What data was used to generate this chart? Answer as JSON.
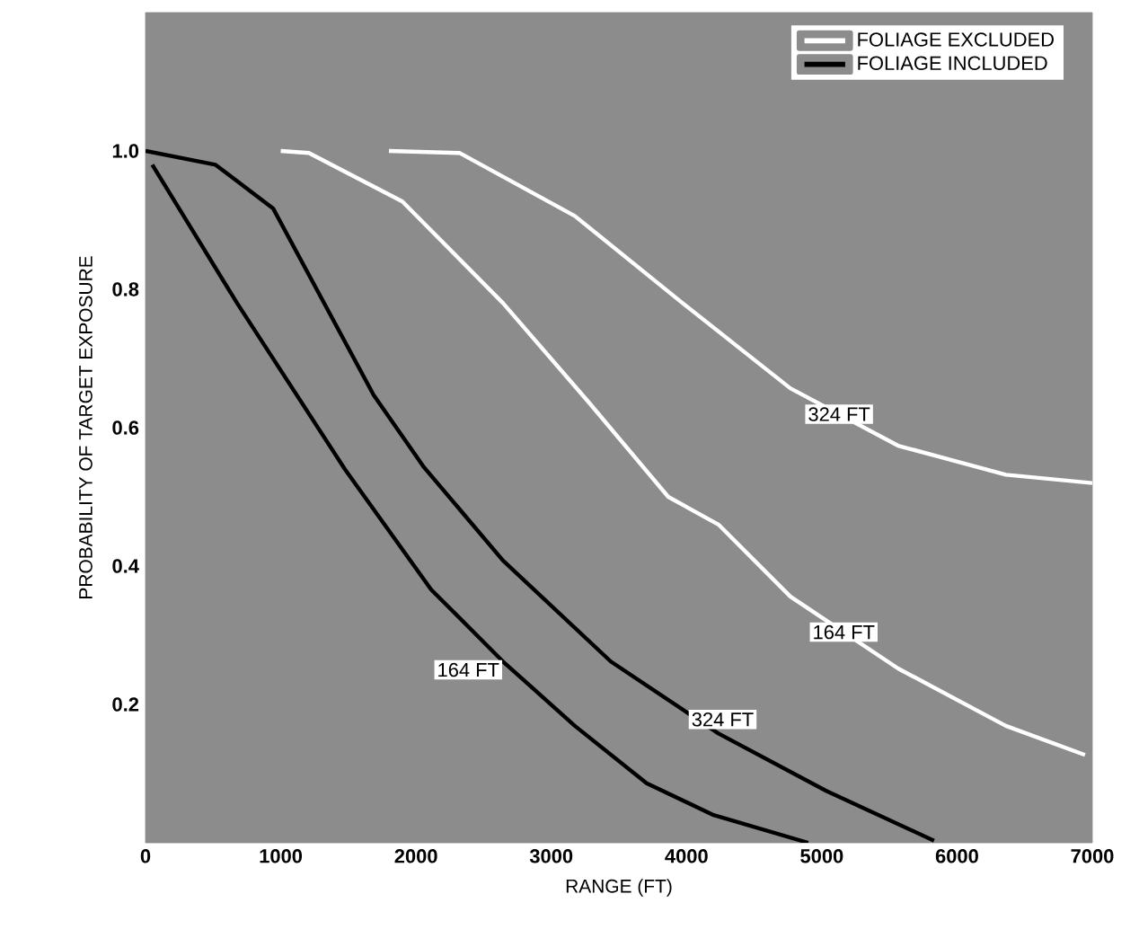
{
  "chart_data": {
    "type": "line",
    "xlabel": "RANGE (FT)",
    "ylabel": "PROBABILITY OF TARGET EXPOSURE",
    "xlim": [
      0,
      7000
    ],
    "ylim": [
      0,
      1.2
    ],
    "xticks": [
      0,
      1000,
      2000,
      3000,
      4000,
      5000,
      6000,
      7000
    ],
    "yticks": [
      0.2,
      0.4,
      0.6,
      0.8,
      {
        "value": 1,
        "label": "1.0"
      }
    ],
    "legend": "top right",
    "series": [
      {
        "name": "FOLIAGE EXCLUDED",
        "color": "#ffffff",
        "x": [
          1000,
          1208,
          1899,
          2643,
          3280,
          3865,
          4236,
          4767,
          5564,
          6361,
          6946
        ],
        "values": [
          1.0,
          0.997,
          0.927,
          0.78,
          0.636,
          0.5,
          0.46,
          0.356,
          0.252,
          0.169,
          0.127
        ]
      },
      {
        "color": "#ffffff",
        "x": [
          1800,
          2324,
          3174,
          3971,
          4767,
          5564,
          6361,
          7000
        ],
        "values": [
          1.0,
          0.997,
          0.906,
          0.78,
          0.657,
          0.574,
          0.532,
          0.52
        ]
      },
      {
        "name": "FOLIAGE INCLUDED",
        "color": "#000000",
        "x": [
          50,
          677,
          1474,
          2112,
          2643,
          3174,
          3705,
          4200,
          4900
        ],
        "values": [
          0.98,
          0.78,
          0.54,
          0.366,
          0.262,
          0.169,
          0.086,
          0.04,
          0.0
        ]
      },
      {
        "color": "#000000",
        "x": [
          0,
          518,
          943,
          1687,
          2058,
          2643,
          3440,
          4236,
          5033,
          5830
        ],
        "values": [
          1.0,
          0.98,
          0.917,
          0.647,
          0.543,
          0.408,
          0.262,
          0.158,
          0.075,
          0.003
        ]
      }
    ],
    "annotations": [
      "164 FT",
      "324 FT",
      "164 FT",
      "324 FT"
    ]
  }
}
